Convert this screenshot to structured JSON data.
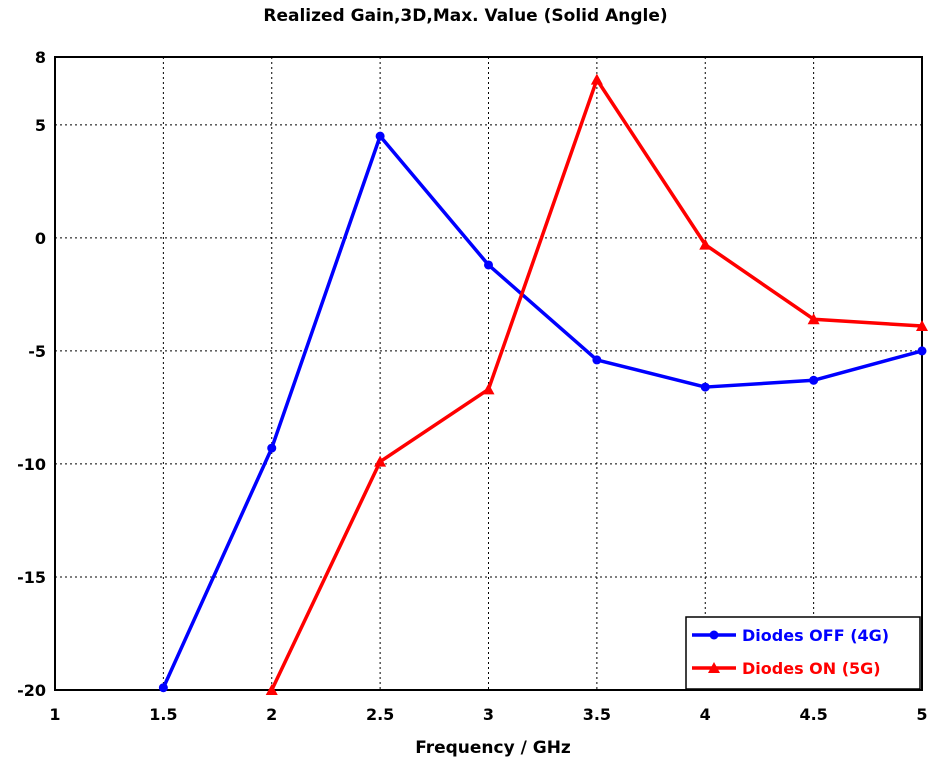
{
  "chart_data": {
    "type": "line",
    "title": "Realized Gain,3D,Max. Value (Solid Angle)",
    "xlabel": "Frequency / GHz",
    "ylabel": "",
    "xlim": [
      1,
      5
    ],
    "ylim": [
      -20,
      8
    ],
    "xticks": [
      "1",
      "1.5",
      "2",
      "2.5",
      "3",
      "3.5",
      "4",
      "4.5",
      "5"
    ],
    "yticks": [
      "8",
      "5",
      "0",
      "-5",
      "-10",
      "-15",
      "-20"
    ],
    "grid": true,
    "legend_position": "bottom-right",
    "series": [
      {
        "name": "Diodes OFF (4G)",
        "color": "#0000ff",
        "marker": "circle",
        "x": [
          1.5,
          2,
          2.5,
          3,
          3.5,
          4,
          4.5,
          5
        ],
        "y": [
          -19.9,
          -9.3,
          4.5,
          -1.2,
          -5.4,
          -6.6,
          -6.3,
          -5.0
        ]
      },
      {
        "name": "Diodes ON (5G)",
        "color": "#ff0000",
        "marker": "triangle",
        "x": [
          2,
          2.5,
          3,
          3.5,
          4,
          4.5,
          5
        ],
        "y": [
          -20.0,
          -9.9,
          -6.7,
          7.0,
          -0.3,
          -3.6,
          -3.9
        ]
      }
    ]
  }
}
